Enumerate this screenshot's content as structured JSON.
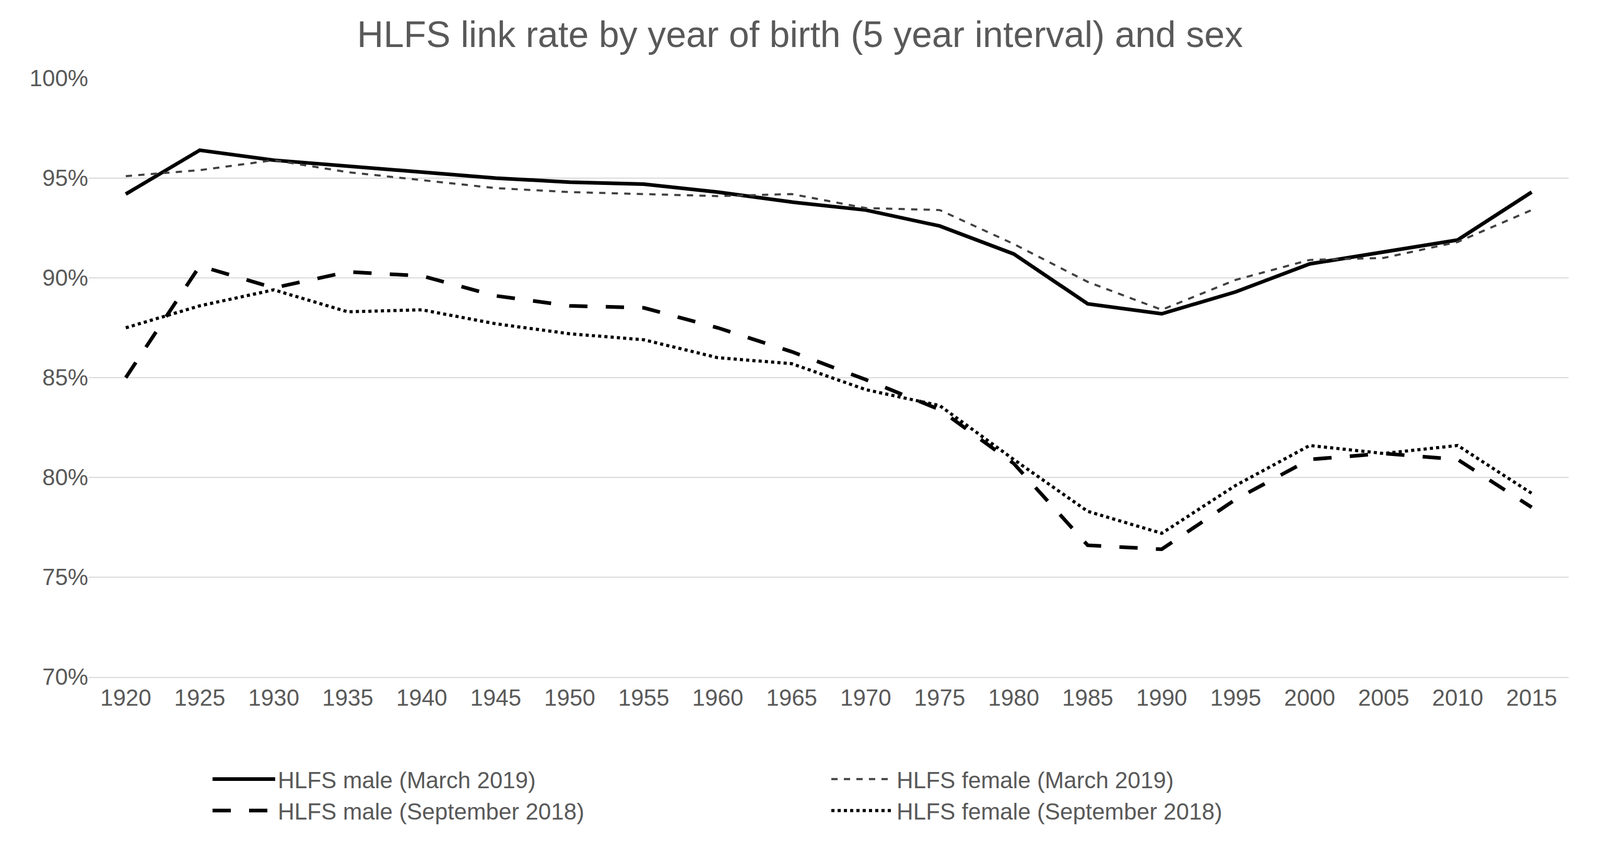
{
  "chart_data": {
    "type": "line",
    "title": "HLFS link rate by year of birth (5 year interval) and sex",
    "x": [
      1920,
      1925,
      1930,
      1935,
      1940,
      1945,
      1950,
      1955,
      1960,
      1965,
      1970,
      1975,
      1980,
      1985,
      1990,
      1995,
      2000,
      2005,
      2010,
      2015
    ],
    "xlim": [
      1917.5,
      2017.5
    ],
    "xticks": [
      1920,
      1925,
      1930,
      1935,
      1940,
      1945,
      1950,
      1955,
      1960,
      1965,
      1970,
      1975,
      1980,
      1985,
      1990,
      1995,
      2000,
      2005,
      2010,
      2015
    ],
    "ylim": [
      70,
      100
    ],
    "yticks": [
      {
        "value": 70,
        "label": "70%"
      },
      {
        "value": 75,
        "label": "75%"
      },
      {
        "value": 80,
        "label": "80%"
      },
      {
        "value": 85,
        "label": "85%"
      },
      {
        "value": 90,
        "label": "90%"
      },
      {
        "value": 95,
        "label": "95%"
      },
      {
        "value": 100,
        "label": "100%"
      }
    ],
    "grid": true,
    "legend": "bottom",
    "series": [
      {
        "name": "HLFS male (March 2019)",
        "color": "#000000",
        "line_style": "solid",
        "values": [
          94.2,
          96.4,
          95.9,
          95.6,
          95.3,
          95.0,
          94.8,
          94.7,
          94.3,
          93.8,
          93.4,
          92.6,
          91.2,
          88.7,
          88.2,
          89.3,
          90.7,
          91.3,
          91.9,
          94.3
        ]
      },
      {
        "name": "HLFS female (March 2019)",
        "color": "#404040",
        "line_style": "dash",
        "values": [
          95.1,
          95.4,
          95.9,
          95.3,
          94.9,
          94.5,
          94.3,
          94.2,
          94.1,
          94.2,
          93.5,
          93.4,
          91.7,
          89.8,
          88.4,
          89.9,
          90.9,
          91.0,
          91.8,
          93.4
        ]
      },
      {
        "name": "HLFS male (September 2018)",
        "color": "#000000",
        "line_style": "longdash",
        "values": [
          85.0,
          90.6,
          89.5,
          90.3,
          90.1,
          89.1,
          88.6,
          88.5,
          87.5,
          86.3,
          84.9,
          83.4,
          80.7,
          76.6,
          76.4,
          78.9,
          80.9,
          81.2,
          80.9,
          78.5
        ]
      },
      {
        "name": "HLFS female (September 2018)",
        "color": "#000000",
        "line_style": "dot",
        "values": [
          87.5,
          88.6,
          89.4,
          88.3,
          88.4,
          87.7,
          87.2,
          86.9,
          86.0,
          85.7,
          84.4,
          83.6,
          80.9,
          78.3,
          77.2,
          79.6,
          81.6,
          81.2,
          81.6,
          79.2
        ]
      }
    ]
  }
}
